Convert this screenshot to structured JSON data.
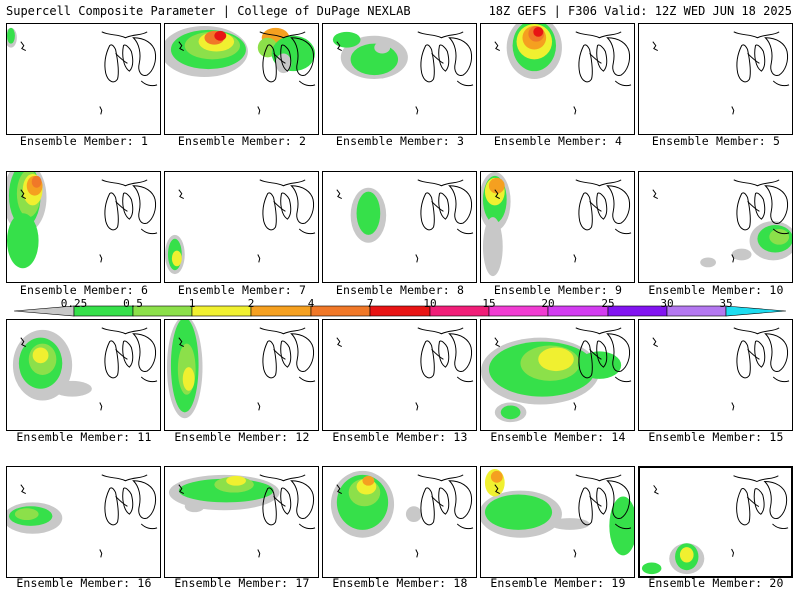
{
  "header": {
    "title_left": "Supercell Composite Parameter | College of DuPage NEXLAB",
    "title_right": "18Z GEFS | F306 Valid: 12Z WED JUN 18 2025"
  },
  "legend": {
    "levels": [
      "0.25",
      "0.5",
      "1",
      "2",
      "4",
      "7",
      "10",
      "15",
      "20",
      "25",
      "30",
      "35"
    ],
    "colors": [
      "#c8c8c8",
      "#36e04a",
      "#8ce04a",
      "#f0f030",
      "#f5a020",
      "#f07828",
      "#e81414",
      "#f01e78",
      "#f03cd2",
      "#d23cf0",
      "#8214f0",
      "#b478f0",
      "#1edcf0"
    ]
  },
  "members": [
    {
      "label": "Ensemble Member: 1"
    },
    {
      "label": "Ensemble Member: 2"
    },
    {
      "label": "Ensemble Member: 3"
    },
    {
      "label": "Ensemble Member: 4"
    },
    {
      "label": "Ensemble Member: 5"
    },
    {
      "label": "Ensemble Member: 6"
    },
    {
      "label": "Ensemble Member: 7"
    },
    {
      "label": "Ensemble Member: 8"
    },
    {
      "label": "Ensemble Member: 9"
    },
    {
      "label": "Ensemble Member: 10"
    },
    {
      "label": "Ensemble Member: 11"
    },
    {
      "label": "Ensemble Member: 12"
    },
    {
      "label": "Ensemble Member: 13"
    },
    {
      "label": "Ensemble Member: 14"
    },
    {
      "label": "Ensemble Member: 15"
    },
    {
      "label": "Ensemble Member: 16"
    },
    {
      "label": "Ensemble Member: 17"
    },
    {
      "label": "Ensemble Member: 18"
    },
    {
      "label": "Ensemble Member: 19"
    },
    {
      "label": "Ensemble Member: 20"
    }
  ]
}
